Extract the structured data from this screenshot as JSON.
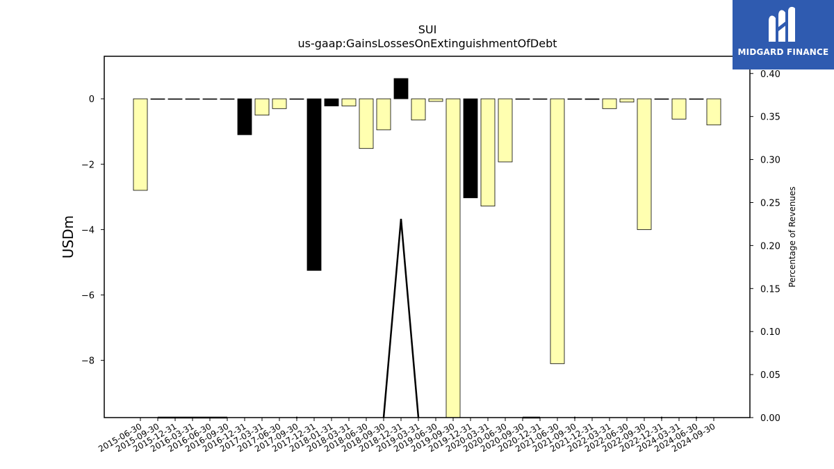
{
  "chart_data": {
    "type": "bar",
    "title": "SUI",
    "subtitle": "us-gaap:GainsLossesOnExtinguishmentOfDebt",
    "ylabel": "USDm",
    "ylabel_right": "Percentage of Revenues",
    "ylim": [
      -9.75,
      1.3
    ],
    "ylim_right": [
      0.0,
      0.42
    ],
    "yticks": [
      0,
      -2,
      -4,
      -6,
      -8
    ],
    "yticks_right": [
      0.0,
      0.05,
      0.1,
      0.15,
      0.2,
      0.25,
      0.3,
      0.35,
      0.4
    ],
    "ytick_labels": [
      "0",
      "−2",
      "−4",
      "−6",
      "−8"
    ],
    "ytick_labels_right": [
      "0.00",
      "0.05",
      "0.10",
      "0.15",
      "0.20",
      "0.25",
      "0.30",
      "0.35",
      "0.40"
    ],
    "categories": [
      "2015-06-30",
      "2015-09-30",
      "2015-12-31",
      "2016-03-31",
      "2016-06-30",
      "2016-09-30",
      "2016-12-31",
      "2017-03-31",
      "2017-06-30",
      "2017-09-30",
      "2017-12-31",
      "2018-01-31",
      "2018-03-31",
      "2018-06-30",
      "2018-09-30",
      "2018-12-31",
      "2019-03-31",
      "2019-06-30",
      "2019-09-30",
      "2019-12-31",
      "2020-03-31",
      "2020-06-30",
      "2020-09-30",
      "2020-12-31",
      "2021-06-30",
      "2021-09-30",
      "2021-12-31",
      "2022-03-31",
      "2022-06-30",
      "2022-09-30",
      "2022-12-31",
      "2024-03-31",
      "2024-06-30",
      "2024-09-30"
    ],
    "values": [
      -2.8,
      0,
      0,
      0,
      0,
      0,
      -1.1,
      -0.5,
      -0.3,
      0,
      -5.25,
      -0.22,
      -0.22,
      -1.52,
      -0.95,
      0.62,
      -0.65,
      -0.08,
      -10.0,
      -3.03,
      -3.28,
      -1.93,
      0,
      0,
      -8.1,
      0,
      -0.02,
      -0.3,
      -0.1,
      -4.0,
      0,
      -0.62,
      0,
      -0.8
    ],
    "bar_colors": [
      "#ffffb0",
      "#ffffb0",
      "#ffffb0",
      "#ffffb0",
      "#ffffb0",
      "#ffffb0",
      "#000000",
      "#ffffb0",
      "#ffffb0",
      "#ffffb0",
      "#000000",
      "#000000",
      "#ffffb0",
      "#ffffb0",
      "#ffffb0",
      "#000000",
      "#ffffb0",
      "#ffffb0",
      "#ffffb0",
      "#000000",
      "#ffffb0",
      "#ffffb0",
      "#ffffb0",
      "#ffffb0",
      "#ffffb0",
      "#ffffb0",
      "#000000",
      "#ffffb0",
      "#ffffb0",
      "#ffffb0",
      "#ffffb0",
      "#ffffb0",
      "#ffffb0",
      "#ffffb0"
    ],
    "line_values": [
      null,
      0,
      0,
      0,
      0,
      0,
      null,
      null,
      null,
      0,
      null,
      null,
      null,
      null,
      0,
      0.231,
      0,
      null,
      null,
      null,
      null,
      null,
      0,
      0,
      null,
      0,
      null,
      null,
      null,
      null,
      0,
      null,
      0,
      null
    ],
    "grid": false,
    "legend": "none"
  },
  "logo": {
    "name": "MIDGARD FINANCE",
    "icon": "midgard-m-icon",
    "background": "#2f5bb0"
  }
}
